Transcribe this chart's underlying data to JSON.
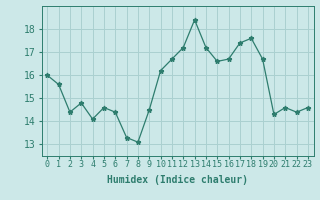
{
  "x": [
    0,
    1,
    2,
    3,
    4,
    5,
    6,
    7,
    8,
    9,
    10,
    11,
    12,
    13,
    14,
    15,
    16,
    17,
    18,
    19,
    20,
    21,
    22,
    23
  ],
  "y": [
    16.0,
    15.6,
    14.4,
    14.8,
    14.1,
    14.6,
    14.4,
    13.3,
    13.1,
    14.5,
    16.2,
    16.7,
    17.2,
    18.4,
    17.2,
    16.6,
    16.7,
    17.4,
    17.6,
    16.7,
    14.3,
    14.6,
    14.4,
    14.6
  ],
  "line_color": "#2e7d6e",
  "marker": "*",
  "bg_color": "#cce8e8",
  "grid_color": "#aad0d0",
  "xlabel": "Humidex (Indice chaleur)",
  "ylim": [
    12.5,
    19.0
  ],
  "xlim": [
    -0.5,
    23.5
  ],
  "yticks": [
    13,
    14,
    15,
    16,
    17,
    18
  ],
  "xtick_labels": [
    "0",
    "1",
    "2",
    "3",
    "4",
    "5",
    "6",
    "7",
    "8",
    "9",
    "10",
    "11",
    "12",
    "13",
    "14",
    "15",
    "16",
    "17",
    "18",
    "19",
    "20",
    "21",
    "22",
    "23"
  ],
  "tick_color": "#2e7d6e",
  "label_color": "#2e7d6e",
  "xtick_fontsize": 6,
  "ytick_fontsize": 7,
  "xlabel_fontsize": 7
}
